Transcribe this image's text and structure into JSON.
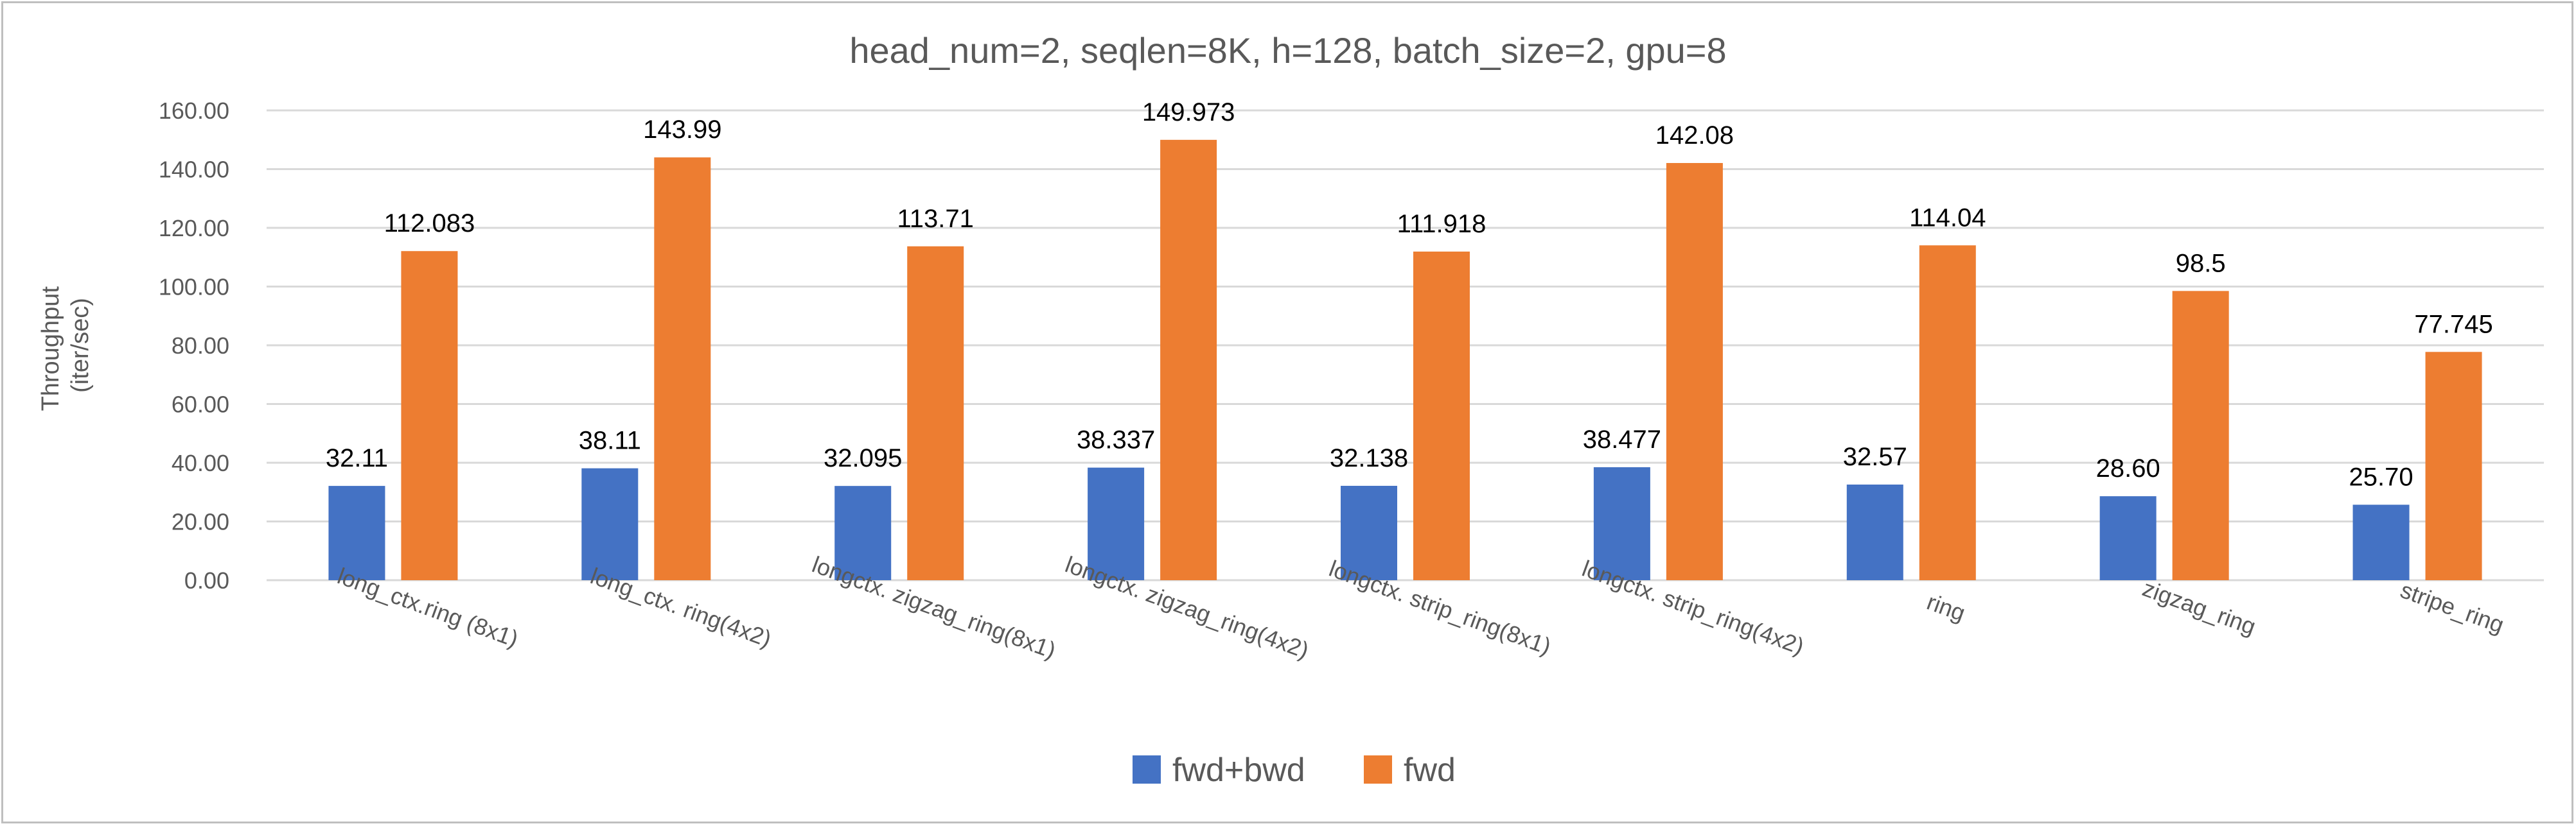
{
  "chart_data": {
    "type": "bar",
    "title": "head_num=2, seqlen=8K, h=128, batch_size=2, gpu=8",
    "ylabel": [
      "Throughput",
      "(iter/sec)"
    ],
    "xlabel": "",
    "ylim": [
      0,
      160
    ],
    "yticks": [
      "0.00",
      "20.00",
      "40.00",
      "60.00",
      "80.00",
      "100.00",
      "120.00",
      "140.00",
      "160.00"
    ],
    "grid": true,
    "legend_position": "bottom",
    "categories": [
      "long_ctx.ring (8x1)",
      "long_ctx. ring(4x2)",
      "longctx. zigzag_ring(8x1)",
      "longctx. zigzag_ring(4x2)",
      "longctx. strip_ring(8x1)",
      "longctx. strip_ring(4x2)",
      "ring",
      "zigzag_ring",
      "stripe_ring"
    ],
    "series": [
      {
        "name": "fwd+bwd",
        "color": "#4472c4",
        "values": [
          32.11,
          38.11,
          32.095,
          38.337,
          32.138,
          38.477,
          32.57,
          28.6,
          25.7
        ],
        "labels": [
          "32.11",
          "38.11",
          "32.095",
          "38.337",
          "32.138",
          "38.477",
          "32.57",
          "28.60",
          "25.70"
        ]
      },
      {
        "name": "fwd",
        "color": "#ed7d31",
        "values": [
          112.083,
          143.99,
          113.71,
          149.973,
          111.918,
          142.08,
          114.04,
          98.5,
          77.745
        ],
        "labels": [
          "112.083",
          "143.99",
          "113.71",
          "149.973",
          "111.918",
          "142.08",
          "114.04",
          "98.5",
          "77.745"
        ]
      }
    ]
  }
}
